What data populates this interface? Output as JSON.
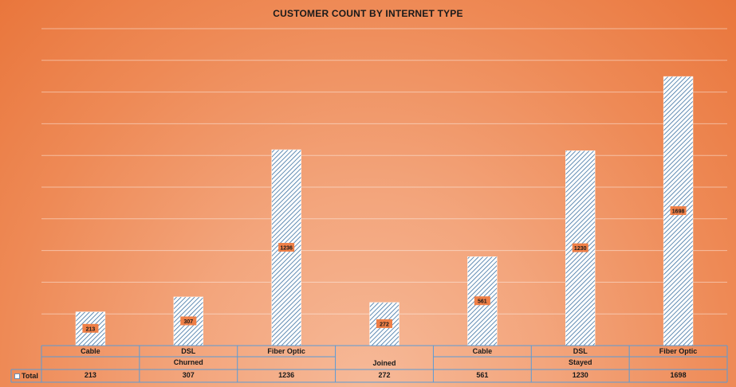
{
  "chart_data": {
    "type": "bar",
    "title": "CUSTOMER COUNT BY INTERNET TYPE",
    "groups": [
      {
        "name": "Churned",
        "categories": [
          "Cable",
          "DSL",
          "Fiber Optic"
        ],
        "values": [
          213,
          307,
          1236
        ]
      },
      {
        "name": "Joined",
        "categories": [
          ""
        ],
        "values": [
          272
        ]
      },
      {
        "name": "Stayed",
        "categories": [
          "Cable",
          "DSL",
          "Fiber Optic"
        ],
        "values": [
          561,
          1230,
          1698
        ]
      }
    ],
    "series": [
      {
        "name": "Total",
        "values": [
          213,
          307,
          1236,
          272,
          561,
          1230,
          1698
        ]
      }
    ],
    "data_table_row_label": "Total",
    "ylim": [
      0,
      2000
    ],
    "grid": true,
    "colors": {
      "bar_pattern": "#3a6fa0",
      "bar_fill": "#ffffff",
      "label_box": "#ee7f47",
      "table_line": "#5b9bd5"
    }
  }
}
